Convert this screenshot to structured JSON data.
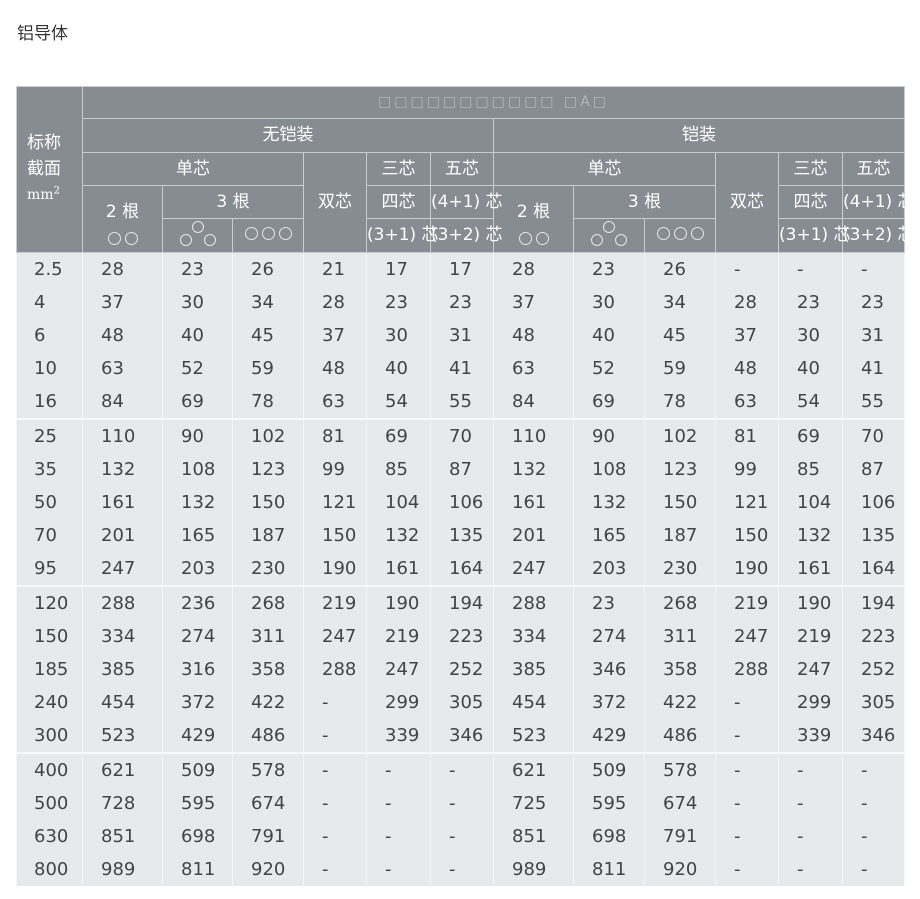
{
  "page_title": "铝导体",
  "header": {
    "corner_line1": "标称",
    "corner_line2": "截面",
    "corner_unit": "mm",
    "corner_unit_sup": "2",
    "title": "□□□□□□□□□□□ □A□",
    "unarmored": "无铠装",
    "armored": "铠装",
    "single_core": "单芯",
    "two_core": "双芯",
    "three_core": "三芯",
    "five_core": "五芯",
    "two_cables": "2 根",
    "three_cables": "3 根",
    "four_core": "四芯",
    "four_plus_one": "(4+1) 芯",
    "three_plus_one": "(3+1) 芯",
    "three_plus_two": "(3+2) 芯",
    "icons": {
      "two_flat": "two-circles-flat-icon",
      "trefoil": "three-circles-trefoil-icon",
      "three_flat": "three-circles-flat-icon"
    }
  },
  "colors": {
    "header_bg": "#878c92",
    "body_bg": "#e8e9eb"
  },
  "rows": [
    [
      "2.5",
      "28",
      "23",
      "26",
      "21",
      "17",
      "17",
      "28",
      "23",
      "26",
      "-",
      "-",
      "-"
    ],
    [
      "4",
      "37",
      "30",
      "34",
      "28",
      "23",
      "23",
      "37",
      "30",
      "34",
      "28",
      "23",
      "23"
    ],
    [
      "6",
      "48",
      "40",
      "45",
      "37",
      "30",
      "31",
      "48",
      "40",
      "45",
      "37",
      "30",
      "31"
    ],
    [
      "10",
      "63",
      "52",
      "59",
      "48",
      "40",
      "41",
      "63",
      "52",
      "59",
      "48",
      "40",
      "41"
    ],
    [
      "16",
      "84",
      "69",
      "78",
      "63",
      "54",
      "55",
      "84",
      "69",
      "78",
      "63",
      "54",
      "55"
    ],
    [
      "25",
      "110",
      "90",
      "102",
      "81",
      "69",
      "70",
      "110",
      "90",
      "102",
      "81",
      "69",
      "70"
    ],
    [
      "35",
      "132",
      "108",
      "123",
      "99",
      "85",
      "87",
      "132",
      "108",
      "123",
      "99",
      "85",
      "87"
    ],
    [
      "50",
      "161",
      "132",
      "150",
      "121",
      "104",
      "106",
      "161",
      "132",
      "150",
      "121",
      "104",
      "106"
    ],
    [
      "70",
      "201",
      "165",
      "187",
      "150",
      "132",
      "135",
      "201",
      "165",
      "187",
      "150",
      "132",
      "135"
    ],
    [
      "95",
      "247",
      "203",
      "230",
      "190",
      "161",
      "164",
      "247",
      "203",
      "230",
      "190",
      "161",
      "164"
    ],
    [
      "120",
      "288",
      "236",
      "268",
      "219",
      "190",
      "194",
      "288",
      "23",
      "268",
      "219",
      "190",
      "194"
    ],
    [
      "150",
      "334",
      "274",
      "311",
      "247",
      "219",
      "223",
      "334",
      "274",
      "311",
      "247",
      "219",
      "223"
    ],
    [
      "185",
      "385",
      "316",
      "358",
      "288",
      "247",
      "252",
      "385",
      "346",
      "358",
      "288",
      "247",
      "252"
    ],
    [
      "240",
      "454",
      "372",
      "422",
      "-",
      "299",
      "305",
      "454",
      "372",
      "422",
      "-",
      "299",
      "305"
    ],
    [
      "300",
      "523",
      "429",
      "486",
      "-",
      "339",
      "346",
      "523",
      "429",
      "486",
      "-",
      "339",
      "346"
    ],
    [
      "400",
      "621",
      "509",
      "578",
      "-",
      "-",
      "-",
      "621",
      "509",
      "578",
      "-",
      "-",
      "-"
    ],
    [
      "500",
      "728",
      "595",
      "674",
      "-",
      "-",
      "-",
      "725",
      "595",
      "674",
      "-",
      "-",
      "-"
    ],
    [
      "630",
      "851",
      "698",
      "791",
      "-",
      "-",
      "-",
      "851",
      "698",
      "791",
      "-",
      "-",
      "-"
    ],
    [
      "800",
      "989",
      "811",
      "920",
      "-",
      "-",
      "-",
      "989",
      "811",
      "920",
      "-",
      "-",
      "-"
    ]
  ]
}
